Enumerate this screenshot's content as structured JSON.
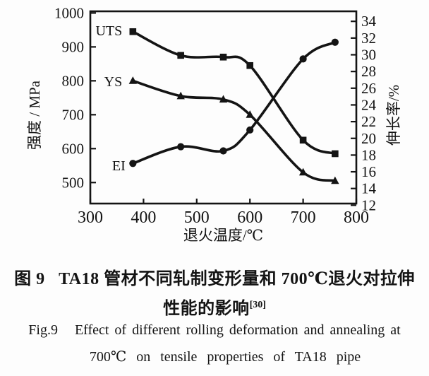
{
  "caption": {
    "cn_line1": "图 9   TA18 管材不同轧制变形量和 700℃退火对拉伸",
    "cn_line2": "性能的影响",
    "cn_ref": "[30]",
    "en_line1": "Fig.9   Effect of different rolling deformation and annealing at",
    "en_line2": "700℃ on tensile properties of TA18 pipe"
  },
  "chart_data": {
    "type": "line",
    "title": "",
    "x_axis": {
      "label": "退火温度/℃",
      "min": 300,
      "max": 800,
      "ticks": [
        300,
        400,
        500,
        600,
        700,
        800
      ]
    },
    "y_left_axis": {
      "label": "强度 / MPa",
      "min": 438,
      "max": 1005,
      "ticks": [
        500,
        600,
        700,
        800,
        900,
        1000
      ]
    },
    "y_right_axis": {
      "label": "伸长率/%",
      "min": 12.2,
      "max": 35.2,
      "ticks": [
        12,
        14,
        16,
        18,
        20,
        22,
        24,
        26,
        28,
        30,
        32,
        34
      ]
    },
    "grid": false,
    "legend_position": "inline-labels",
    "color": "#141414",
    "series": [
      {
        "name": "UTS",
        "axis": "left",
        "marker": "square",
        "points": [
          [
            380,
            945
          ],
          [
            470,
            875
          ],
          [
            550,
            870
          ],
          [
            600,
            845
          ],
          [
            700,
            625
          ],
          [
            760,
            585
          ]
        ],
        "label_at": [
          360,
          947
        ]
      },
      {
        "name": "YS",
        "axis": "left",
        "marker": "triangle",
        "points": [
          [
            380,
            800
          ],
          [
            470,
            755
          ],
          [
            550,
            745
          ],
          [
            600,
            700
          ],
          [
            700,
            530
          ],
          [
            760,
            505
          ]
        ],
        "label_at": [
          360,
          797
        ]
      },
      {
        "name": "EI",
        "axis": "right",
        "marker": "circle",
        "points": [
          [
            380,
            17
          ],
          [
            470,
            19
          ],
          [
            550,
            18.5
          ],
          [
            600,
            21
          ],
          [
            700,
            29.5
          ],
          [
            760,
            31.5
          ]
        ],
        "label_at": [
          366,
          16.7
        ]
      }
    ]
  }
}
